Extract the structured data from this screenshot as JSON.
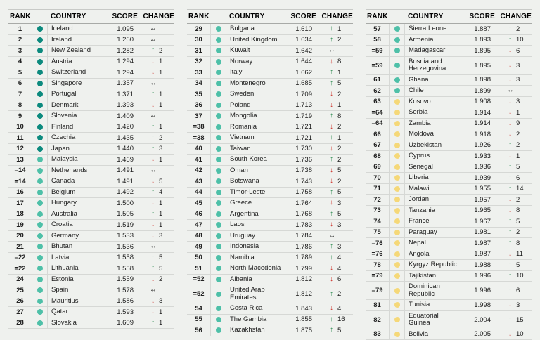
{
  "columns": {
    "rank": "RANK",
    "country": "COUNTRY",
    "score": "SCORE",
    "change": "CHANGE"
  },
  "icons": {
    "up": "↑",
    "down": "↓",
    "none": "↔"
  },
  "colors": {
    "page_bg": "#eff1ee",
    "text": "#1c1c1c",
    "band_dark": "#0c8a7e",
    "band_teal": "#4ec0a8",
    "band_yellow": "#f5d878",
    "arrow_up": "#2f8c52",
    "arrow_down": "#cc3128",
    "arrow_none": "#141414",
    "separator": "#d6d8d5",
    "header_rule": "#a8aaa7",
    "top_rule": "#c8cac7"
  },
  "tables": [
    {
      "rows": [
        {
          "rank": "1",
          "country": "Iceland",
          "score": "1.095",
          "change_dir": "none",
          "change_places": "",
          "band": "dark"
        },
        {
          "rank": "2",
          "country": "Ireland",
          "score": "1.260",
          "change_dir": "none",
          "change_places": "",
          "band": "dark"
        },
        {
          "rank": "3",
          "country": "New Zealand",
          "score": "1.282",
          "change_dir": "up",
          "change_places": "2",
          "band": "dark"
        },
        {
          "rank": "4",
          "country": "Austria",
          "score": "1.294",
          "change_dir": "down",
          "change_places": "1",
          "band": "dark"
        },
        {
          "rank": "5",
          "country": "Switzerland",
          "score": "1.294",
          "change_dir": "down",
          "change_places": "1",
          "band": "dark"
        },
        {
          "rank": "6",
          "country": "Singapore",
          "score": "1.357",
          "change_dir": "none",
          "change_places": "",
          "band": "dark"
        },
        {
          "rank": "7",
          "country": "Portugal",
          "score": "1.371",
          "change_dir": "up",
          "change_places": "1",
          "band": "dark"
        },
        {
          "rank": "8",
          "country": "Denmark",
          "score": "1.393",
          "change_dir": "down",
          "change_places": "1",
          "band": "dark"
        },
        {
          "rank": "9",
          "country": "Slovenia",
          "score": "1.409",
          "change_dir": "none",
          "change_places": "",
          "band": "dark"
        },
        {
          "rank": "10",
          "country": "Finland",
          "score": "1.420",
          "change_dir": "up",
          "change_places": "1",
          "band": "dark"
        },
        {
          "rank": "11",
          "country": "Czechia",
          "score": "1.435",
          "change_dir": "up",
          "change_places": "2",
          "band": "dark"
        },
        {
          "rank": "12",
          "country": "Japan",
          "score": "1.440",
          "change_dir": "up",
          "change_places": "3",
          "band": "dark"
        },
        {
          "rank": "13",
          "country": "Malaysia",
          "score": "1.469",
          "change_dir": "down",
          "change_places": "1",
          "band": "teal"
        },
        {
          "rank": "=14",
          "country": "Netherlands",
          "score": "1.491",
          "change_dir": "none",
          "change_places": "",
          "band": "teal"
        },
        {
          "rank": "=14",
          "country": "Canada",
          "score": "1.491",
          "change_dir": "down",
          "change_places": "5",
          "band": "teal"
        },
        {
          "rank": "16",
          "country": "Belgium",
          "score": "1.492",
          "change_dir": "up",
          "change_places": "4",
          "band": "teal"
        },
        {
          "rank": "17",
          "country": "Hungary",
          "score": "1.500",
          "change_dir": "down",
          "change_places": "1",
          "band": "teal"
        },
        {
          "rank": "18",
          "country": "Australia",
          "score": "1.505",
          "change_dir": "up",
          "change_places": "1",
          "band": "teal"
        },
        {
          "rank": "19",
          "country": "Croatia",
          "score": "1.519",
          "change_dir": "down",
          "change_places": "1",
          "band": "teal"
        },
        {
          "rank": "20",
          "country": "Germany",
          "score": "1.533",
          "change_dir": "down",
          "change_places": "3",
          "band": "teal"
        },
        {
          "rank": "21",
          "country": "Bhutan",
          "score": "1.536",
          "change_dir": "none",
          "change_places": "",
          "band": "teal"
        },
        {
          "rank": "=22",
          "country": "Latvia",
          "score": "1.558",
          "change_dir": "up",
          "change_places": "5",
          "band": "teal"
        },
        {
          "rank": "=22",
          "country": "Lithuania",
          "score": "1.558",
          "change_dir": "up",
          "change_places": "5",
          "band": "teal"
        },
        {
          "rank": "24",
          "country": "Estonia",
          "score": "1.559",
          "change_dir": "down",
          "change_places": "2",
          "band": "teal"
        },
        {
          "rank": "25",
          "country": "Spain",
          "score": "1.578",
          "change_dir": "none",
          "change_places": "",
          "band": "teal"
        },
        {
          "rank": "26",
          "country": "Mauritius",
          "score": "1.586",
          "change_dir": "down",
          "change_places": "3",
          "band": "teal"
        },
        {
          "rank": "27",
          "country": "Qatar",
          "score": "1.593",
          "change_dir": "down",
          "change_places": "1",
          "band": "teal"
        },
        {
          "rank": "28",
          "country": "Slovakia",
          "score": "1.609",
          "change_dir": "up",
          "change_places": "1",
          "band": "teal"
        }
      ]
    },
    {
      "rows": [
        {
          "rank": "29",
          "country": "Bulgaria",
          "score": "1.610",
          "change_dir": "up",
          "change_places": "1",
          "band": "teal"
        },
        {
          "rank": "30",
          "country": "United Kingdom",
          "score": "1.634",
          "change_dir": "up",
          "change_places": "2",
          "band": "teal"
        },
        {
          "rank": "31",
          "country": "Kuwait",
          "score": "1.642",
          "change_dir": "none",
          "change_places": "",
          "band": "teal"
        },
        {
          "rank": "32",
          "country": "Norway",
          "score": "1.644",
          "change_dir": "down",
          "change_places": "8",
          "band": "teal"
        },
        {
          "rank": "33",
          "country": "Italy",
          "score": "1.662",
          "change_dir": "up",
          "change_places": "1",
          "band": "teal"
        },
        {
          "rank": "34",
          "country": "Montenegro",
          "score": "1.685",
          "change_dir": "up",
          "change_places": "5",
          "band": "teal"
        },
        {
          "rank": "35",
          "country": "Sweden",
          "score": "1.709",
          "change_dir": "down",
          "change_places": "2",
          "band": "teal"
        },
        {
          "rank": "36",
          "country": "Poland",
          "score": "1.713",
          "change_dir": "down",
          "change_places": "1",
          "band": "teal"
        },
        {
          "rank": "37",
          "country": "Mongolia",
          "score": "1.719",
          "change_dir": "up",
          "change_places": "8",
          "band": "teal"
        },
        {
          "rank": "=38",
          "country": "Romania",
          "score": "1.721",
          "change_dir": "down",
          "change_places": "2",
          "band": "teal"
        },
        {
          "rank": "=38",
          "country": "Vietnam",
          "score": "1.721",
          "change_dir": "up",
          "change_places": "1",
          "band": "teal"
        },
        {
          "rank": "40",
          "country": "Taiwan",
          "score": "1.730",
          "change_dir": "down",
          "change_places": "2",
          "band": "teal"
        },
        {
          "rank": "41",
          "country": "South Korea",
          "score": "1.736",
          "change_dir": "up",
          "change_places": "2",
          "band": "teal"
        },
        {
          "rank": "42",
          "country": "Oman",
          "score": "1.738",
          "change_dir": "down",
          "change_places": "5",
          "band": "teal"
        },
        {
          "rank": "43",
          "country": "Botswana",
          "score": "1.743",
          "change_dir": "down",
          "change_places": "2",
          "band": "teal"
        },
        {
          "rank": "44",
          "country": "Timor-Leste",
          "score": "1.758",
          "change_dir": "up",
          "change_places": "5",
          "band": "teal"
        },
        {
          "rank": "45",
          "country": "Greece",
          "score": "1.764",
          "change_dir": "down",
          "change_places": "3",
          "band": "teal"
        },
        {
          "rank": "46",
          "country": "Argentina",
          "score": "1.768",
          "change_dir": "up",
          "change_places": "5",
          "band": "teal"
        },
        {
          "rank": "47",
          "country": "Laos",
          "score": "1.783",
          "change_dir": "down",
          "change_places": "3",
          "band": "teal"
        },
        {
          "rank": "48",
          "country": "Uruguay",
          "score": "1.784",
          "change_dir": "none",
          "change_places": "",
          "band": "teal"
        },
        {
          "rank": "49",
          "country": "Indonesia",
          "score": "1.786",
          "change_dir": "up",
          "change_places": "3",
          "band": "teal"
        },
        {
          "rank": "50",
          "country": "Namibia",
          "score": "1.789",
          "change_dir": "up",
          "change_places": "4",
          "band": "teal"
        },
        {
          "rank": "51",
          "country": "North Macedonia",
          "score": "1.799",
          "change_dir": "down",
          "change_places": "4",
          "band": "teal"
        },
        {
          "rank": "=52",
          "country": "Albania",
          "score": "1.812",
          "change_dir": "down",
          "change_places": "6",
          "band": "teal"
        },
        {
          "rank": "=52",
          "country": "United Arab Emirates",
          "score": "1.812",
          "change_dir": "up",
          "change_places": "2",
          "band": "teal"
        },
        {
          "rank": "54",
          "country": "Costa Rica",
          "score": "1.843",
          "change_dir": "down",
          "change_places": "4",
          "band": "teal"
        },
        {
          "rank": "55",
          "country": "The Gambia",
          "score": "1.855",
          "change_dir": "up",
          "change_places": "16",
          "band": "teal"
        },
        {
          "rank": "56",
          "country": "Kazakhstan",
          "score": "1.875",
          "change_dir": "up",
          "change_places": "5",
          "band": "teal"
        }
      ]
    },
    {
      "rows": [
        {
          "rank": "57",
          "country": "Sierra Leone",
          "score": "1.887",
          "change_dir": "up",
          "change_places": "2",
          "band": "teal"
        },
        {
          "rank": "58",
          "country": "Armenia",
          "score": "1.893",
          "change_dir": "up",
          "change_places": "10",
          "band": "teal"
        },
        {
          "rank": "=59",
          "country": "Madagascar",
          "score": "1.895",
          "change_dir": "down",
          "change_places": "6",
          "band": "teal"
        },
        {
          "rank": "=59",
          "country": "Bosnia and Herzegovina",
          "score": "1.895",
          "change_dir": "down",
          "change_places": "3",
          "band": "teal"
        },
        {
          "rank": "61",
          "country": "Ghana",
          "score": "1.898",
          "change_dir": "down",
          "change_places": "3",
          "band": "teal"
        },
        {
          "rank": "62",
          "country": "Chile",
          "score": "1.899",
          "change_dir": "none",
          "change_places": "",
          "band": "teal"
        },
        {
          "rank": "63",
          "country": "Kosovo",
          "score": "1.908",
          "change_dir": "down",
          "change_places": "3",
          "band": "yellow"
        },
        {
          "rank": "=64",
          "country": "Serbia",
          "score": "1.914",
          "change_dir": "down",
          "change_places": "1",
          "band": "yellow"
        },
        {
          "rank": "=64",
          "country": "Zambia",
          "score": "1.914",
          "change_dir": "down",
          "change_places": "9",
          "band": "yellow"
        },
        {
          "rank": "66",
          "country": "Moldova",
          "score": "1.918",
          "change_dir": "down",
          "change_places": "2",
          "band": "yellow"
        },
        {
          "rank": "67",
          "country": "Uzbekistan",
          "score": "1.926",
          "change_dir": "up",
          "change_places": "2",
          "band": "yellow"
        },
        {
          "rank": "68",
          "country": "Cyprus",
          "score": "1.933",
          "change_dir": "down",
          "change_places": "1",
          "band": "yellow"
        },
        {
          "rank": "69",
          "country": "Senegal",
          "score": "1.936",
          "change_dir": "up",
          "change_places": "5",
          "band": "yellow"
        },
        {
          "rank": "70",
          "country": "Liberia",
          "score": "1.939",
          "change_dir": "up",
          "change_places": "6",
          "band": "yellow"
        },
        {
          "rank": "71",
          "country": "Malawi",
          "score": "1.955",
          "change_dir": "up",
          "change_places": "14",
          "band": "yellow"
        },
        {
          "rank": "72",
          "country": "Jordan",
          "score": "1.957",
          "change_dir": "down",
          "change_places": "2",
          "band": "yellow"
        },
        {
          "rank": "73",
          "country": "Tanzania",
          "score": "1.965",
          "change_dir": "down",
          "change_places": "8",
          "band": "yellow"
        },
        {
          "rank": "74",
          "country": "France",
          "score": "1.967",
          "change_dir": "up",
          "change_places": "5",
          "band": "yellow"
        },
        {
          "rank": "75",
          "country": "Paraguay",
          "score": "1.981",
          "change_dir": "up",
          "change_places": "2",
          "band": "yellow"
        },
        {
          "rank": "=76",
          "country": "Nepal",
          "score": "1.987",
          "change_dir": "up",
          "change_places": "8",
          "band": "yellow"
        },
        {
          "rank": "=76",
          "country": "Angola",
          "score": "1.987",
          "change_dir": "down",
          "change_places": "11",
          "band": "yellow"
        },
        {
          "rank": "78",
          "country": "Kyrgyz Republic",
          "score": "1.988",
          "change_dir": "up",
          "change_places": "5",
          "band": "yellow"
        },
        {
          "rank": "=79",
          "country": "Tajikistan",
          "score": "1.996",
          "change_dir": "up",
          "change_places": "10",
          "band": "yellow"
        },
        {
          "rank": "=79",
          "country": "Dominican Republic",
          "score": "1.996",
          "change_dir": "up",
          "change_places": "6",
          "band": "yellow"
        },
        {
          "rank": "81",
          "country": "Tunisia",
          "score": "1.998",
          "change_dir": "down",
          "change_places": "3",
          "band": "yellow"
        },
        {
          "rank": "82",
          "country": "Equatorial Guinea",
          "score": "2.004",
          "change_dir": "up",
          "change_places": "15",
          "band": "yellow"
        },
        {
          "rank": "83",
          "country": "Bolivia",
          "score": "2.005",
          "change_dir": "down",
          "change_places": "10",
          "band": "yellow"
        }
      ]
    }
  ]
}
